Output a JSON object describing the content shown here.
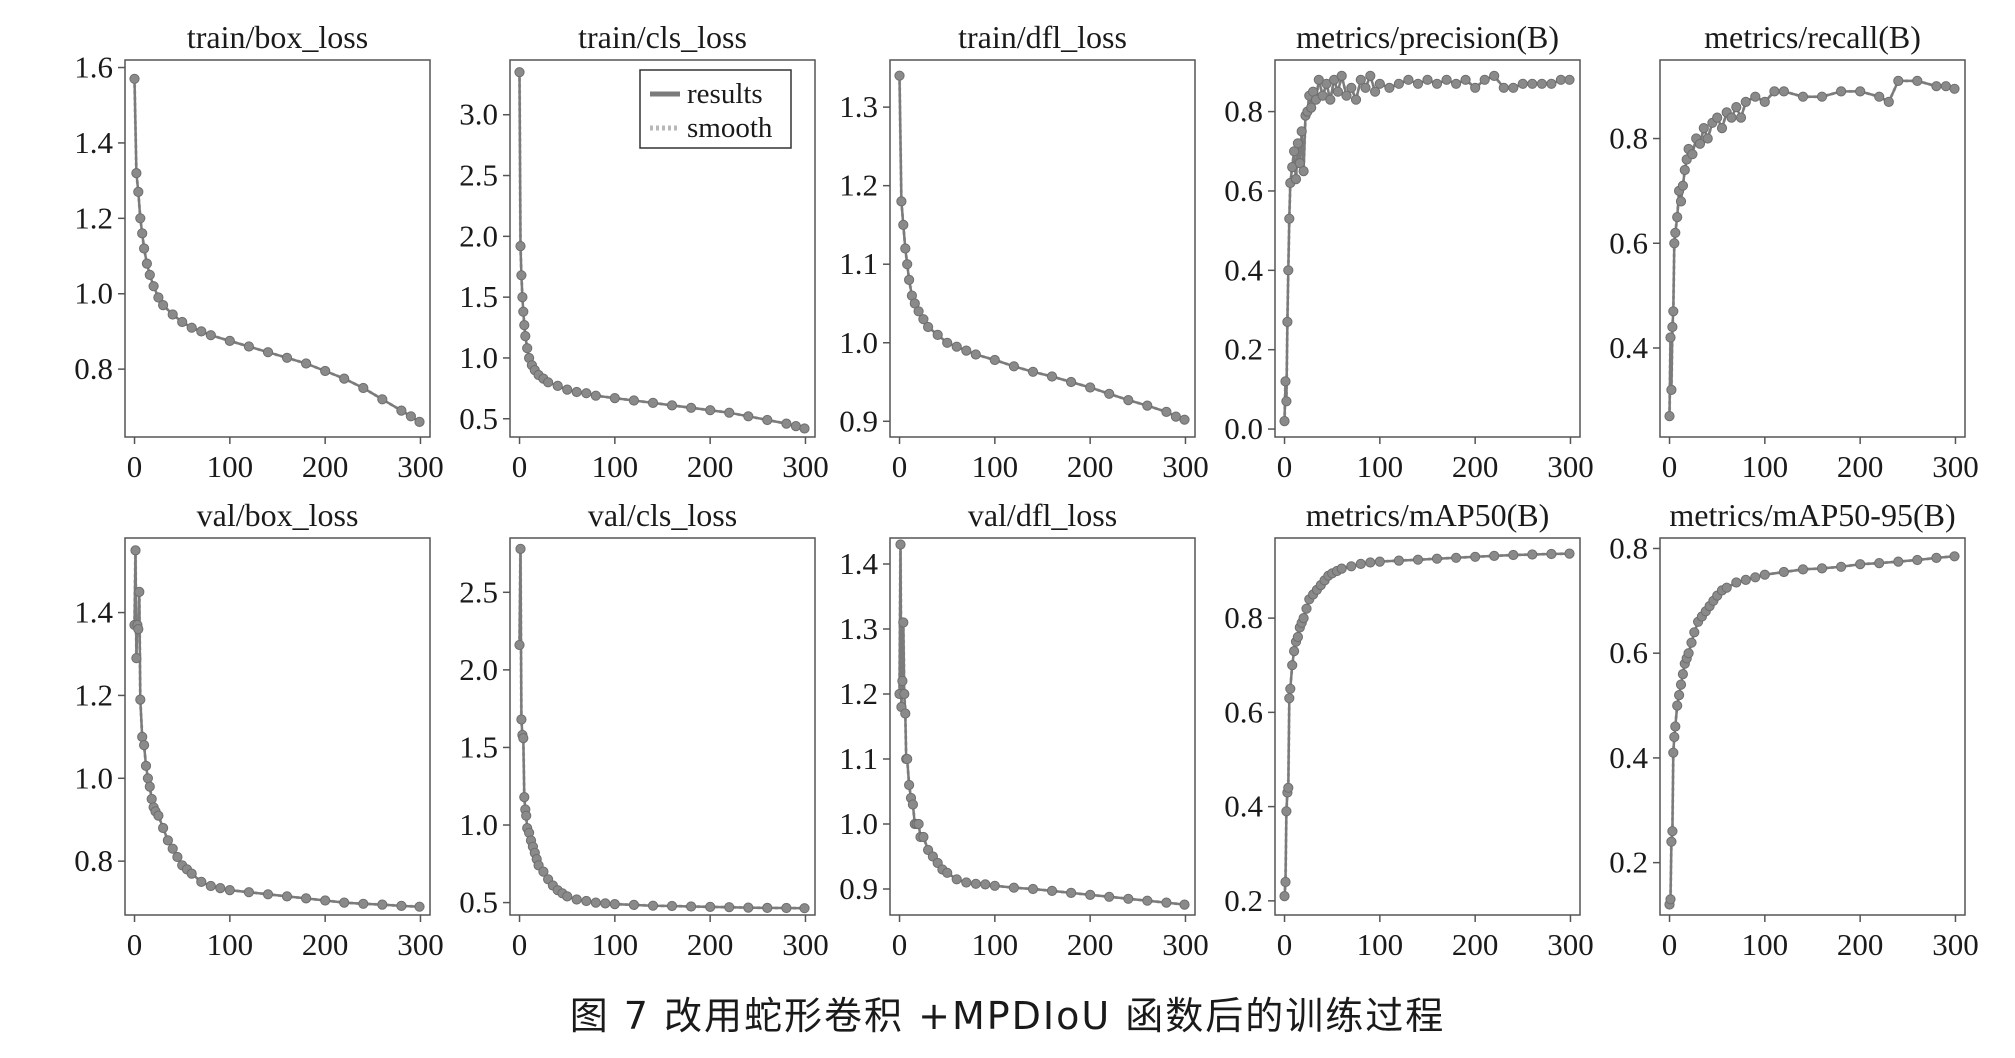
{
  "caption": "图 7  改用蛇形卷积 +MPDIoU 函数后的训练过程",
  "legend": {
    "results": "results",
    "smooth": "smooth"
  },
  "colors": {
    "line": "#7b7b7b",
    "marker": "#8a8a8a",
    "smooth": "#b8b8b8",
    "frame": "#555555"
  },
  "chart_data": [
    {
      "type": "line",
      "title": "train/box_loss",
      "xlim": [
        -10,
        310
      ],
      "ylim": [
        0.62,
        1.62
      ],
      "xticks": [
        0,
        100,
        200,
        300
      ],
      "yticks": [
        0.8,
        1.0,
        1.2,
        1.4,
        1.6
      ],
      "series": [
        {
          "x": [
            0,
            2,
            4,
            6,
            8,
            10,
            13,
            16,
            20,
            25,
            30,
            40,
            50,
            60,
            70,
            80,
            100,
            120,
            140,
            160,
            180,
            200,
            220,
            240,
            260,
            280,
            290,
            299
          ],
          "values": [
            1.57,
            1.32,
            1.27,
            1.2,
            1.16,
            1.12,
            1.08,
            1.05,
            1.02,
            0.99,
            0.97,
            0.945,
            0.925,
            0.91,
            0.9,
            0.89,
            0.875,
            0.86,
            0.845,
            0.83,
            0.815,
            0.795,
            0.775,
            0.75,
            0.72,
            0.69,
            0.675,
            0.66
          ]
        }
      ]
    },
    {
      "type": "line",
      "title": "train/cls_loss",
      "xlim": [
        -10,
        310
      ],
      "ylim": [
        0.35,
        3.45
      ],
      "xticks": [
        0,
        100,
        200,
        300
      ],
      "yticks": [
        0.5,
        1.0,
        1.5,
        2.0,
        2.5,
        3.0
      ],
      "legend_position": "top-right",
      "series": [
        {
          "x": [
            0,
            1,
            2,
            3,
            4,
            5,
            6,
            8,
            10,
            13,
            16,
            20,
            25,
            30,
            40,
            50,
            60,
            70,
            80,
            100,
            120,
            140,
            160,
            180,
            200,
            220,
            240,
            260,
            280,
            290,
            299
          ],
          "values": [
            3.35,
            1.92,
            1.68,
            1.5,
            1.38,
            1.27,
            1.18,
            1.08,
            1.0,
            0.94,
            0.9,
            0.86,
            0.83,
            0.8,
            0.77,
            0.74,
            0.72,
            0.71,
            0.69,
            0.67,
            0.65,
            0.63,
            0.61,
            0.59,
            0.57,
            0.55,
            0.52,
            0.49,
            0.46,
            0.44,
            0.42
          ]
        }
      ]
    },
    {
      "type": "line",
      "title": "train/dfl_loss",
      "xlim": [
        -10,
        310
      ],
      "ylim": [
        0.88,
        1.36
      ],
      "xticks": [
        0,
        100,
        200,
        300
      ],
      "yticks": [
        0.9,
        1.0,
        1.1,
        1.2,
        1.3
      ],
      "series": [
        {
          "x": [
            0,
            2,
            4,
            6,
            8,
            10,
            13,
            16,
            20,
            25,
            30,
            40,
            50,
            60,
            70,
            80,
            100,
            120,
            140,
            160,
            180,
            200,
            220,
            240,
            260,
            280,
            290,
            299
          ],
          "values": [
            1.34,
            1.18,
            1.15,
            1.12,
            1.1,
            1.08,
            1.06,
            1.05,
            1.04,
            1.03,
            1.02,
            1.01,
            1.0,
            0.995,
            0.99,
            0.985,
            0.978,
            0.97,
            0.963,
            0.957,
            0.95,
            0.943,
            0.935,
            0.927,
            0.92,
            0.912,
            0.906,
            0.902
          ]
        }
      ]
    },
    {
      "type": "line",
      "title": "metrics/precision(B)",
      "xlim": [
        -10,
        310
      ],
      "ylim": [
        -0.02,
        0.93
      ],
      "xticks": [
        0,
        100,
        200,
        300
      ],
      "yticks": [
        0.0,
        0.2,
        0.4,
        0.6,
        0.8
      ],
      "series": [
        {
          "x": [
            0,
            1,
            2,
            3,
            4,
            5,
            6,
            8,
            10,
            12,
            14,
            16,
            18,
            20,
            22,
            24,
            26,
            28,
            30,
            33,
            36,
            40,
            44,
            48,
            52,
            56,
            60,
            65,
            70,
            75,
            80,
            85,
            90,
            95,
            100,
            110,
            120,
            130,
            140,
            150,
            160,
            170,
            180,
            190,
            200,
            210,
            220,
            230,
            240,
            250,
            260,
            270,
            280,
            290,
            299
          ],
          "values": [
            0.02,
            0.12,
            0.07,
            0.27,
            0.4,
            0.53,
            0.62,
            0.66,
            0.7,
            0.63,
            0.72,
            0.67,
            0.75,
            0.65,
            0.79,
            0.8,
            0.84,
            0.81,
            0.85,
            0.83,
            0.88,
            0.84,
            0.87,
            0.83,
            0.88,
            0.85,
            0.89,
            0.84,
            0.86,
            0.83,
            0.88,
            0.86,
            0.89,
            0.85,
            0.87,
            0.86,
            0.87,
            0.88,
            0.87,
            0.88,
            0.87,
            0.88,
            0.87,
            0.88,
            0.86,
            0.88,
            0.89,
            0.86,
            0.86,
            0.87,
            0.87,
            0.87,
            0.87,
            0.88,
            0.88
          ]
        }
      ]
    },
    {
      "type": "line",
      "title": "metrics/recall(B)",
      "xlim": [
        -10,
        310
      ],
      "ylim": [
        0.23,
        0.95
      ],
      "xticks": [
        0,
        100,
        200,
        300
      ],
      "yticks": [
        0.4,
        0.6,
        0.8
      ],
      "series": [
        {
          "x": [
            0,
            1,
            2,
            3,
            4,
            5,
            6,
            8,
            10,
            12,
            14,
            16,
            18,
            20,
            24,
            28,
            32,
            36,
            40,
            45,
            50,
            55,
            60,
            65,
            70,
            75,
            80,
            90,
            100,
            110,
            120,
            140,
            160,
            180,
            200,
            220,
            230,
            240,
            260,
            280,
            290,
            299
          ],
          "values": [
            0.27,
            0.42,
            0.32,
            0.44,
            0.47,
            0.6,
            0.62,
            0.65,
            0.7,
            0.68,
            0.71,
            0.74,
            0.76,
            0.78,
            0.77,
            0.8,
            0.79,
            0.82,
            0.8,
            0.83,
            0.84,
            0.82,
            0.85,
            0.84,
            0.86,
            0.84,
            0.87,
            0.88,
            0.87,
            0.89,
            0.89,
            0.88,
            0.88,
            0.89,
            0.89,
            0.88,
            0.87,
            0.91,
            0.91,
            0.9,
            0.9,
            0.895
          ]
        }
      ]
    },
    {
      "type": "line",
      "title": "val/box_loss",
      "xlim": [
        -10,
        310
      ],
      "ylim": [
        0.67,
        1.58
      ],
      "xticks": [
        0,
        100,
        200,
        300
      ],
      "yticks": [
        0.8,
        1.0,
        1.2,
        1.4
      ],
      "series": [
        {
          "x": [
            0,
            1,
            2,
            3,
            4,
            5,
            6,
            8,
            10,
            12,
            14,
            16,
            18,
            20,
            22,
            25,
            30,
            35,
            40,
            45,
            50,
            55,
            60,
            70,
            80,
            90,
            100,
            120,
            140,
            160,
            180,
            200,
            220,
            240,
            260,
            280,
            299
          ],
          "values": [
            1.37,
            1.55,
            1.29,
            1.37,
            1.36,
            1.45,
            1.19,
            1.1,
            1.08,
            1.03,
            1.0,
            0.98,
            0.95,
            0.93,
            0.92,
            0.91,
            0.88,
            0.85,
            0.83,
            0.81,
            0.79,
            0.78,
            0.77,
            0.75,
            0.74,
            0.735,
            0.73,
            0.725,
            0.72,
            0.715,
            0.71,
            0.705,
            0.7,
            0.697,
            0.695,
            0.692,
            0.69
          ]
        }
      ]
    },
    {
      "type": "line",
      "title": "val/cls_loss",
      "xlim": [
        -10,
        310
      ],
      "ylim": [
        0.42,
        2.85
      ],
      "xticks": [
        0,
        100,
        200,
        300
      ],
      "yticks": [
        0.5,
        1.0,
        1.5,
        2.0,
        2.5
      ],
      "series": [
        {
          "x": [
            0,
            1,
            2,
            3,
            4,
            5,
            6,
            7,
            8,
            10,
            12,
            14,
            16,
            18,
            20,
            25,
            30,
            35,
            40,
            45,
            50,
            60,
            70,
            80,
            90,
            100,
            120,
            140,
            160,
            180,
            200,
            220,
            240,
            260,
            280,
            299
          ],
          "values": [
            2.16,
            2.78,
            1.68,
            1.58,
            1.56,
            1.18,
            1.1,
            1.06,
            0.98,
            0.95,
            0.9,
            0.86,
            0.82,
            0.78,
            0.74,
            0.7,
            0.65,
            0.61,
            0.58,
            0.56,
            0.54,
            0.52,
            0.51,
            0.5,
            0.495,
            0.49,
            0.485,
            0.48,
            0.478,
            0.475,
            0.472,
            0.47,
            0.468,
            0.466,
            0.465,
            0.464
          ]
        }
      ]
    },
    {
      "type": "line",
      "title": "val/dfl_loss",
      "xlim": [
        -10,
        310
      ],
      "ylim": [
        0.86,
        1.44
      ],
      "xticks": [
        0,
        100,
        200,
        300
      ],
      "yticks": [
        0.9,
        1.0,
        1.1,
        1.2,
        1.3,
        1.4
      ],
      "series": [
        {
          "x": [
            0,
            1,
            2,
            3,
            4,
            5,
            6,
            7,
            8,
            10,
            12,
            14,
            16,
            18,
            20,
            22,
            25,
            30,
            35,
            40,
            45,
            50,
            60,
            70,
            80,
            90,
            100,
            120,
            140,
            160,
            180,
            200,
            220,
            240,
            260,
            280,
            299
          ],
          "values": [
            1.2,
            1.43,
            1.18,
            1.22,
            1.31,
            1.2,
            1.17,
            1.1,
            1.1,
            1.06,
            1.04,
            1.03,
            1.0,
            1.0,
            1.0,
            0.98,
            0.98,
            0.96,
            0.95,
            0.94,
            0.93,
            0.925,
            0.915,
            0.91,
            0.908,
            0.907,
            0.905,
            0.902,
            0.9,
            0.897,
            0.894,
            0.891,
            0.888,
            0.885,
            0.882,
            0.879,
            0.876
          ]
        }
      ]
    },
    {
      "type": "line",
      "title": "metrics/mAP50(B)",
      "xlim": [
        -10,
        310
      ],
      "ylim": [
        0.17,
        0.97
      ],
      "xticks": [
        0,
        100,
        200,
        300
      ],
      "yticks": [
        0.2,
        0.4,
        0.6,
        0.8
      ],
      "series": [
        {
          "x": [
            0,
            1,
            2,
            3,
            4,
            5,
            6,
            8,
            10,
            12,
            14,
            16,
            18,
            20,
            23,
            26,
            30,
            34,
            38,
            42,
            46,
            50,
            55,
            60,
            70,
            80,
            90,
            100,
            120,
            140,
            160,
            180,
            200,
            220,
            240,
            260,
            280,
            299
          ],
          "values": [
            0.21,
            0.24,
            0.39,
            0.43,
            0.44,
            0.63,
            0.65,
            0.7,
            0.73,
            0.75,
            0.76,
            0.78,
            0.79,
            0.8,
            0.82,
            0.84,
            0.85,
            0.86,
            0.87,
            0.88,
            0.89,
            0.895,
            0.9,
            0.905,
            0.91,
            0.915,
            0.918,
            0.92,
            0.922,
            0.924,
            0.926,
            0.928,
            0.93,
            0.932,
            0.934,
            0.935,
            0.936,
            0.937
          ]
        }
      ]
    },
    {
      "type": "line",
      "title": "metrics/mAP50-95(B)",
      "xlim": [
        -10,
        310
      ],
      "ylim": [
        0.1,
        0.82
      ],
      "xticks": [
        0,
        100,
        200,
        300
      ],
      "yticks": [
        0.2,
        0.4,
        0.6,
        0.8
      ],
      "series": [
        {
          "x": [
            0,
            1,
            2,
            3,
            4,
            5,
            6,
            8,
            10,
            12,
            14,
            16,
            18,
            20,
            23,
            26,
            30,
            34,
            38,
            42,
            46,
            50,
            55,
            60,
            70,
            80,
            90,
            100,
            120,
            140,
            160,
            180,
            200,
            220,
            240,
            260,
            280,
            299
          ],
          "values": [
            0.12,
            0.13,
            0.24,
            0.26,
            0.41,
            0.44,
            0.46,
            0.5,
            0.52,
            0.54,
            0.56,
            0.58,
            0.59,
            0.6,
            0.62,
            0.64,
            0.66,
            0.67,
            0.68,
            0.69,
            0.7,
            0.71,
            0.72,
            0.725,
            0.735,
            0.74,
            0.745,
            0.75,
            0.755,
            0.76,
            0.762,
            0.765,
            0.77,
            0.772,
            0.775,
            0.778,
            0.782,
            0.785
          ]
        }
      ]
    }
  ]
}
